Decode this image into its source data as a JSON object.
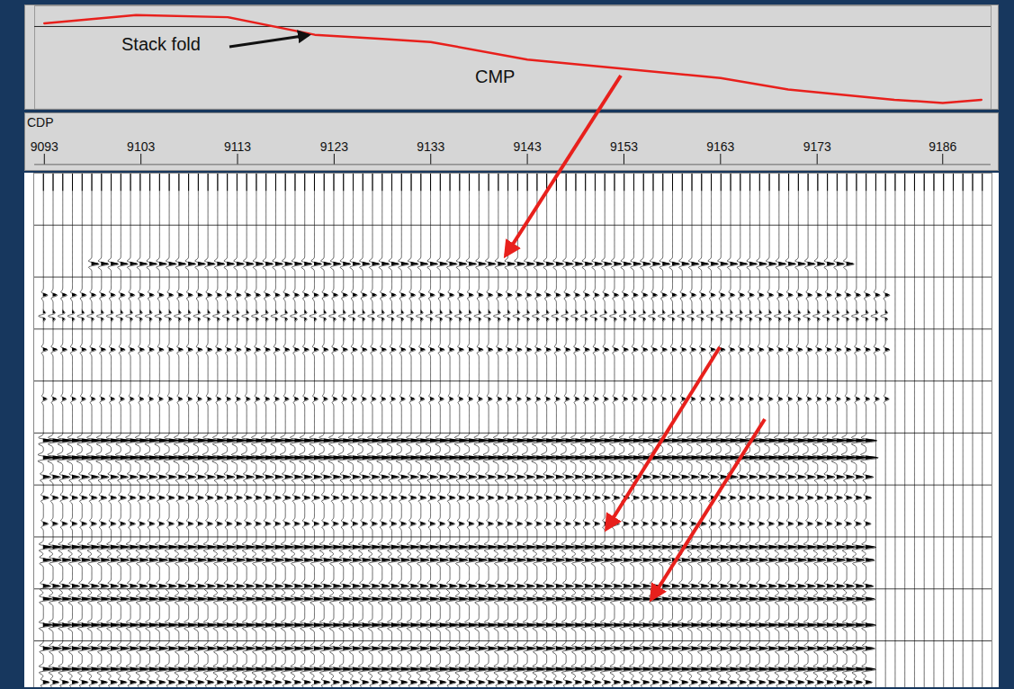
{
  "chart_data": {
    "type": "line",
    "annotations": [
      "Stack fold",
      "CMP"
    ],
    "xlabel": "CDP",
    "xlim": [
      9092,
      9191
    ],
    "xticks": [
      9093,
      9103,
      9113,
      9123,
      9133,
      9143,
      9153,
      9163,
      9173,
      9186
    ],
    "tick_labels": "x",
    "x": [
      9093,
      9102.5,
      9112,
      9121,
      9128,
      9133,
      9143,
      9153,
      9163,
      9170,
      9181,
      9186,
      9190
    ],
    "values": [
      83,
      91,
      89,
      72,
      68,
      65,
      48,
      39,
      30,
      19,
      9,
      6,
      9
    ],
    "color": "#e8201c",
    "ylim": [
      0,
      100
    ],
    "fold_reference": 80,
    "section": {
      "type": "wiggle",
      "color": "#000000",
      "trace_cdp_range": [
        9093,
        9190
      ],
      "time_range": [
        0,
        9.9
      ],
      "timing_lines": [
        1,
        2,
        3,
        4,
        5,
        6,
        7,
        8,
        9
      ],
      "reflectors": [
        {
          "time": 1.75,
          "amplitude": 0.6,
          "cdp_from": 9098,
          "cdp_to": 9176
        },
        {
          "time": 2.35,
          "amplitude": 0.35,
          "cdp_from": 9093,
          "cdp_to": 9180
        },
        {
          "time": 2.75,
          "amplitude": -0.4,
          "cdp_from": 9093,
          "cdp_to": 9180
        },
        {
          "time": 3.4,
          "amplitude": 0.35,
          "cdp_from": 9093,
          "cdp_to": 9180
        },
        {
          "time": 4.35,
          "amplitude": 0.3,
          "cdp_from": 9093,
          "cdp_to": 9180
        },
        {
          "time": 5.15,
          "amplitude": 0.9,
          "cdp_from": 9093,
          "cdp_to": 9178
        },
        {
          "time": 5.48,
          "amplitude": 1.0,
          "cdp_from": 9093,
          "cdp_to": 9178
        },
        {
          "time": 5.85,
          "amplitude": 0.6,
          "cdp_from": 9093,
          "cdp_to": 9178
        },
        {
          "time": 6.25,
          "amplitude": 0.45,
          "cdp_from": 9093,
          "cdp_to": 9178
        },
        {
          "time": 6.75,
          "amplitude": 0.4,
          "cdp_from": 9093,
          "cdp_to": 9178
        },
        {
          "time": 7.2,
          "amplitude": 0.8,
          "cdp_from": 9093,
          "cdp_to": 9178
        },
        {
          "time": 7.45,
          "amplitude": 0.7,
          "cdp_from": 9093,
          "cdp_to": 9178
        },
        {
          "time": 7.95,
          "amplitude": 0.6,
          "cdp_from": 9093,
          "cdp_to": 9178
        },
        {
          "time": 8.2,
          "amplitude": 0.75,
          "cdp_from": 9093,
          "cdp_to": 9178
        },
        {
          "time": 8.7,
          "amplitude": 0.8,
          "cdp_from": 9093,
          "cdp_to": 9178
        },
        {
          "time": 9.15,
          "amplitude": 0.7,
          "cdp_from": 9093,
          "cdp_to": 9178
        },
        {
          "time": 9.55,
          "amplitude": 0.8,
          "cdp_from": 9093,
          "cdp_to": 9178
        },
        {
          "time": 9.8,
          "amplitude": 0.5,
          "cdp_from": 9093,
          "cdp_to": 9178
        }
      ]
    }
  }
}
